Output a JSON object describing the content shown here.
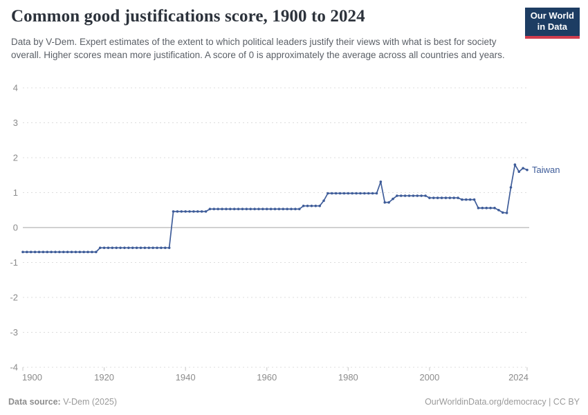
{
  "header": {
    "title": "Common good justifications score, 1900 to 2024",
    "subtitle": "Data by V-Dem. Expert estimates of the extent to which political leaders justify their views with what is best for society overall. Higher scores mean more justification. A score of 0 is approximately the average across all countries and years.",
    "logo": {
      "line1": "Our World",
      "line2": "in Data",
      "bg_color": "#1d3d63",
      "accent_color": "#d13d4e"
    }
  },
  "chart_data": {
    "type": "line",
    "title": "Common good justifications score, 1900 to 2024",
    "xlabel": "",
    "ylabel": "",
    "xlim": [
      1900,
      2024
    ],
    "ylim": [
      -4,
      4
    ],
    "yticks": [
      4,
      3,
      2,
      1,
      0,
      -1,
      -2,
      -3,
      -4
    ],
    "xticks": [
      1900,
      1920,
      1940,
      1960,
      1980,
      2000,
      2024
    ],
    "grid": "horizontal-dashed",
    "legend": "line-end-label",
    "series": [
      {
        "name": "Taiwan",
        "color": "#3e5c99",
        "years": [
          1900,
          1901,
          1902,
          1903,
          1904,
          1905,
          1906,
          1907,
          1908,
          1909,
          1910,
          1911,
          1912,
          1913,
          1914,
          1915,
          1916,
          1917,
          1918,
          1919,
          1920,
          1921,
          1922,
          1923,
          1924,
          1925,
          1926,
          1927,
          1928,
          1929,
          1930,
          1931,
          1932,
          1933,
          1934,
          1935,
          1936,
          1937,
          1938,
          1939,
          1940,
          1941,
          1942,
          1943,
          1944,
          1945,
          1946,
          1947,
          1948,
          1949,
          1950,
          1951,
          1952,
          1953,
          1954,
          1955,
          1956,
          1957,
          1958,
          1959,
          1960,
          1961,
          1962,
          1963,
          1964,
          1965,
          1966,
          1967,
          1968,
          1969,
          1970,
          1971,
          1972,
          1973,
          1974,
          1975,
          1976,
          1977,
          1978,
          1979,
          1980,
          1981,
          1982,
          1983,
          1984,
          1985,
          1986,
          1987,
          1988,
          1989,
          1990,
          1991,
          1992,
          1993,
          1994,
          1995,
          1996,
          1997,
          1998,
          1999,
          2000,
          2001,
          2002,
          2003,
          2004,
          2005,
          2006,
          2007,
          2008,
          2009,
          2010,
          2011,
          2012,
          2013,
          2014,
          2015,
          2016,
          2017,
          2018,
          2019,
          2020,
          2021,
          2022,
          2023,
          2024
        ],
        "values": [
          -0.7,
          -0.7,
          -0.7,
          -0.7,
          -0.7,
          -0.7,
          -0.7,
          -0.7,
          -0.7,
          -0.7,
          -0.7,
          -0.7,
          -0.7,
          -0.7,
          -0.7,
          -0.7,
          -0.7,
          -0.7,
          -0.7,
          -0.58,
          -0.58,
          -0.58,
          -0.58,
          -0.58,
          -0.58,
          -0.58,
          -0.58,
          -0.58,
          -0.58,
          -0.58,
          -0.58,
          -0.58,
          -0.58,
          -0.58,
          -0.58,
          -0.58,
          -0.58,
          0.46,
          0.46,
          0.46,
          0.46,
          0.46,
          0.46,
          0.46,
          0.46,
          0.46,
          0.53,
          0.53,
          0.53,
          0.53,
          0.53,
          0.53,
          0.53,
          0.53,
          0.53,
          0.53,
          0.53,
          0.53,
          0.53,
          0.53,
          0.53,
          0.53,
          0.53,
          0.53,
          0.53,
          0.53,
          0.53,
          0.53,
          0.53,
          0.62,
          0.62,
          0.62,
          0.62,
          0.62,
          0.77,
          0.98,
          0.98,
          0.98,
          0.98,
          0.98,
          0.98,
          0.98,
          0.98,
          0.98,
          0.98,
          0.98,
          0.98,
          0.98,
          1.31,
          0.72,
          0.72,
          0.82,
          0.91,
          0.91,
          0.91,
          0.91,
          0.91,
          0.91,
          0.91,
          0.91,
          0.85,
          0.85,
          0.85,
          0.85,
          0.85,
          0.85,
          0.85,
          0.85,
          0.8,
          0.8,
          0.8,
          0.8,
          0.56,
          0.56,
          0.56,
          0.56,
          0.56,
          0.5,
          0.43,
          0.42,
          1.15,
          1.8,
          1.6,
          1.7,
          1.65
        ]
      }
    ]
  },
  "footer": {
    "source_label": "Data source:",
    "source_value": " V-Dem (2025)",
    "url": "OurWorldinData.org/democracy",
    "license": " | CC BY"
  }
}
